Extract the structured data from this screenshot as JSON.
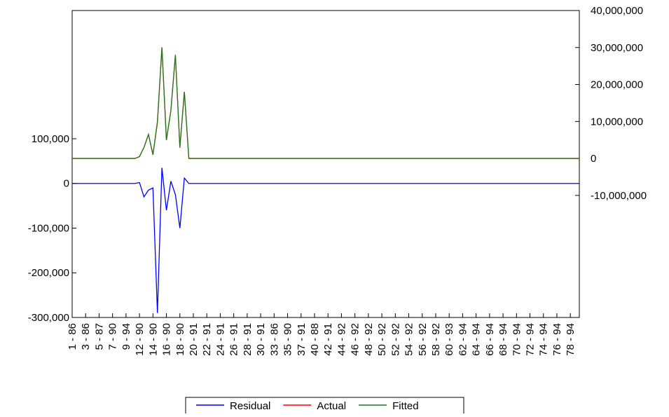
{
  "chart_data": {
    "type": "line",
    "categories": [
      "1 - 86",
      null,
      null,
      "3 - 86",
      null,
      null,
      "5 - 87",
      null,
      null,
      "7 - 90",
      null,
      null,
      "9 - 94",
      null,
      null,
      "12 - 90",
      null,
      null,
      "14 - 90",
      null,
      null,
      "16 - 90",
      null,
      null,
      "18 - 90",
      null,
      null,
      "20 - 91",
      null,
      null,
      "22 - 91",
      null,
      null,
      "24 - 91",
      null,
      null,
      "26 - 91",
      null,
      null,
      "28 - 91",
      null,
      null,
      "30 - 91",
      null,
      null,
      "33 - 86",
      null,
      null,
      "35 - 90",
      null,
      null,
      "37 - 91",
      null,
      null,
      "40 - 88",
      null,
      null,
      "42 - 91",
      null,
      null,
      "44 - 92",
      null,
      null,
      "46 - 92",
      null,
      null,
      "48 - 92",
      null,
      null,
      "50 - 92",
      null,
      null,
      "52 - 92",
      null,
      null,
      "54 - 92",
      null,
      null,
      "56 - 92",
      null,
      null,
      "58 - 92",
      null,
      null,
      "60 - 93",
      null,
      null,
      "62 - 94",
      null,
      null,
      "64 - 94",
      null,
      null,
      "66 - 94",
      null,
      null,
      "68 - 94",
      null,
      null,
      "70 - 94",
      null,
      null,
      "72 - 94",
      null,
      null,
      "74 - 94",
      null,
      null,
      "76 - 94",
      null,
      null,
      "78 - 94",
      null,
      null
    ],
    "series": [
      {
        "name": "Residual",
        "color": "#0000ff",
        "values": [
          0,
          0,
          0,
          0,
          0,
          0,
          0,
          0,
          0,
          0,
          0,
          0,
          0,
          0,
          0,
          2000,
          -30000,
          -15000,
          -10000,
          -290000,
          35000,
          -60000,
          5000,
          -25000,
          -100000,
          12000,
          0,
          0,
          0,
          0,
          0,
          0,
          0,
          0,
          0,
          0,
          0,
          0,
          0,
          0,
          0,
          0,
          0,
          0,
          0,
          0,
          0,
          0,
          0,
          0,
          0,
          0,
          0,
          0,
          0,
          0,
          0,
          0,
          0,
          0,
          0,
          0,
          0,
          0,
          0,
          0,
          0,
          0,
          0,
          0,
          0,
          0,
          0,
          0,
          0,
          0,
          0,
          0,
          0,
          0,
          0,
          0,
          0,
          0,
          0,
          0,
          0,
          0,
          0,
          0,
          0,
          0,
          0,
          0,
          0,
          0,
          0,
          0,
          0,
          0,
          0,
          0,
          0,
          0,
          0,
          0,
          0,
          0,
          0,
          0,
          0,
          0,
          0,
          0
        ]
      },
      {
        "name": "Actual",
        "color": "#ff0000",
        "axis": "y2",
        "values": [
          0,
          0,
          0,
          0,
          0,
          0,
          0,
          0,
          0,
          0,
          0,
          0,
          0,
          0,
          0,
          502000,
          2970000,
          6485000,
          990000,
          9710000,
          30035000,
          4940000,
          13005000,
          27975000,
          2900000,
          18012000,
          0,
          0,
          0,
          0,
          0,
          0,
          0,
          0,
          0,
          0,
          0,
          0,
          0,
          0,
          0,
          0,
          0,
          0,
          0,
          0,
          0,
          0,
          0,
          0,
          0,
          0,
          0,
          0,
          0,
          0,
          0,
          0,
          0,
          0,
          0,
          0,
          0,
          0,
          0,
          0,
          0,
          0,
          0,
          0,
          0,
          0,
          0,
          0,
          0,
          0,
          0,
          0,
          0,
          0,
          0,
          0,
          0,
          0,
          0,
          0,
          0,
          0,
          0,
          0,
          0,
          0,
          0,
          0,
          0,
          0,
          0,
          0,
          0,
          0,
          0,
          0,
          0,
          0,
          0,
          0,
          0,
          0,
          0,
          0,
          0,
          0,
          0,
          0
        ]
      },
      {
        "name": "Fitted",
        "color": "#217a21",
        "axis": "y2",
        "values": [
          0,
          0,
          0,
          0,
          0,
          0,
          0,
          0,
          0,
          0,
          0,
          0,
          0,
          0,
          0,
          500000,
          3000000,
          6500000,
          1000000,
          10000000,
          30000000,
          5000000,
          13000000,
          28000000,
          3000000,
          18000000,
          0,
          0,
          0,
          0,
          0,
          0,
          0,
          0,
          0,
          0,
          0,
          0,
          0,
          0,
          0,
          0,
          0,
          0,
          0,
          0,
          0,
          0,
          0,
          0,
          0,
          0,
          0,
          0,
          0,
          0,
          0,
          0,
          0,
          0,
          0,
          0,
          0,
          0,
          0,
          0,
          0,
          0,
          0,
          0,
          0,
          0,
          0,
          0,
          0,
          0,
          0,
          0,
          0,
          0,
          0,
          0,
          0,
          0,
          0,
          0,
          0,
          0,
          0,
          0,
          0,
          0,
          0,
          0,
          0,
          0,
          0,
          0,
          0,
          0,
          0,
          0,
          0,
          0,
          0,
          0,
          0,
          0,
          0,
          0,
          0,
          0,
          0,
          0
        ]
      }
    ],
    "ylim": [
      -300000,
      387000
    ],
    "yticks": [
      {
        "value": -300000,
        "label": "-300,000"
      },
      {
        "value": -200000,
        "label": "-200,000"
      },
      {
        "value": -100000,
        "label": "-100,000"
      },
      0,
      {
        "value": 100000,
        "label": "100,000"
      }
    ],
    "y2lim": [
      -43000000,
      40000000
    ],
    "y2ticks": [
      {
        "value": -10000000,
        "label": "-10,000,000"
      },
      0,
      {
        "value": 10000000,
        "label": "10,000,000"
      },
      {
        "value": 20000000,
        "label": "20,000,000"
      },
      {
        "value": 30000000,
        "label": "30,000,000"
      },
      {
        "value": 40000000,
        "label": "40,000,000"
      }
    ],
    "legend": "bottom"
  }
}
